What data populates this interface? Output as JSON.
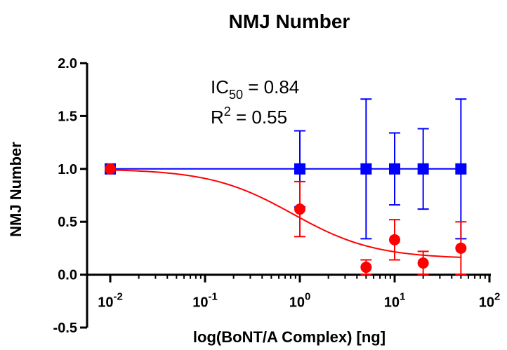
{
  "chart_data": {
    "type": "scatter",
    "title": "NMJ Number",
    "xlabel": "log(BoNT/A Complex) [ng]",
    "ylabel": "NMJ Number",
    "x_scale": "log",
    "xlim": [
      0.01,
      100
    ],
    "ylim": [
      -0.5,
      2.0
    ],
    "x_ticks": [
      {
        "value": 0.01,
        "base": "10",
        "exp": "-2"
      },
      {
        "value": 0.1,
        "base": "10",
        "exp": "-1"
      },
      {
        "value": 1,
        "base": "10",
        "exp": "0"
      },
      {
        "value": 10,
        "base": "10",
        "exp": "1"
      },
      {
        "value": 100,
        "base": "10",
        "exp": "2"
      }
    ],
    "y_ticks": [
      {
        "value": -0.5,
        "label": "-0.5"
      },
      {
        "value": 0.0,
        "label": "0.0"
      },
      {
        "value": 0.5,
        "label": "0.5"
      },
      {
        "value": 1.0,
        "label": "1.0"
      },
      {
        "value": 1.5,
        "label": "1.5"
      },
      {
        "value": 2.0,
        "label": "2.0"
      }
    ],
    "annotations": {
      "ic50": {
        "prefix": "IC",
        "sub": "50",
        "suffix": " = 0.84"
      },
      "r2": {
        "prefix": "R",
        "sup": "2",
        "suffix": " = 0.55"
      }
    },
    "series": [
      {
        "color": "#0000ff",
        "marker": "square",
        "x": [
          0.01,
          1,
          5,
          10,
          20,
          50
        ],
        "y": [
          1.0,
          1.0,
          1.0,
          1.0,
          1.0,
          1.0
        ],
        "err_low": [
          0.0,
          0.36,
          0.66,
          0.34,
          0.38,
          0.66
        ],
        "err_high": [
          0.0,
          0.36,
          0.66,
          0.34,
          0.38,
          0.66
        ],
        "fit": {
          "type": "flat",
          "value": 1.0
        }
      },
      {
        "color": "#ff0000",
        "marker": "circle",
        "x": [
          0.01,
          1,
          5,
          10,
          20,
          50
        ],
        "y": [
          1.0,
          0.62,
          0.07,
          0.33,
          0.11,
          0.25
        ],
        "err_low": [
          0.0,
          0.26,
          0.07,
          0.19,
          0.11,
          0.25
        ],
        "err_high": [
          0.0,
          0.26,
          0.07,
          0.19,
          0.11,
          0.25
        ],
        "fit": {
          "type": "sigmoid",
          "top": 1.0,
          "bottom": 0.15,
          "ic50": 0.84,
          "hill": 1.0
        }
      }
    ],
    "grid": false,
    "legend": "none"
  }
}
